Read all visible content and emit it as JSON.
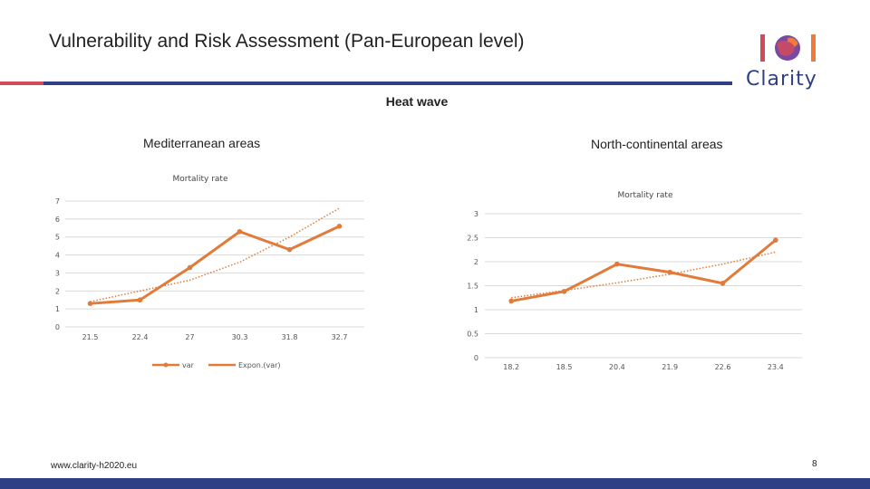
{
  "header": {
    "title": "Vulnerability and Risk Assessment (Pan-European level)"
  },
  "logo": {
    "text": "Clarity",
    "colors": [
      "#d24a5a",
      "#2f3f86",
      "#7b4aa0",
      "#f07a3a"
    ]
  },
  "section_title": "Heat wave",
  "regions": {
    "mediterranean": "Mediterranean areas",
    "north_continental": "North-continental areas"
  },
  "colors": {
    "accent_bar": "#d24a5a",
    "primary_bar": "#2f3f86",
    "series": "#e07b39",
    "gridline": "#d9d9d9"
  },
  "chart_data": [
    {
      "type": "line",
      "title": "Mortality rate",
      "categories": [
        "21.5",
        "22.4",
        "27",
        "30.3",
        "31.8",
        "32.7"
      ],
      "series": [
        {
          "name": "var",
          "values": [
            1.3,
            1.5,
            3.3,
            5.3,
            4.3,
            5.6
          ]
        },
        {
          "name": "Expon.(var)",
          "values": [
            1.4,
            2.0,
            2.6,
            3.6,
            5.0,
            6.6
          ],
          "style": "dotted"
        }
      ],
      "ylim": [
        0,
        7
      ],
      "yticks": [
        "0",
        "1",
        "2",
        "3",
        "4",
        "5",
        "6",
        "7"
      ],
      "legend": "bottom"
    },
    {
      "type": "line",
      "title": "Mortality rate",
      "categories": [
        "18.2",
        "18.5",
        "20.4",
        "21.9",
        "22.6",
        "23.4"
      ],
      "series": [
        {
          "name": "var",
          "values": [
            1.18,
            1.38,
            1.95,
            1.78,
            1.55,
            2.45
          ]
        },
        {
          "name": "Expon.(var)",
          "values": [
            1.25,
            1.4,
            1.56,
            1.74,
            1.95,
            2.2
          ],
          "style": "dotted"
        }
      ],
      "ylim": [
        0,
        3
      ],
      "yticks": [
        "0",
        "0.5",
        "1",
        "1.5",
        "2",
        "2.5",
        "3"
      ]
    }
  ],
  "footer": {
    "url": "www.clarity-h2020.eu",
    "page_number": "8"
  }
}
